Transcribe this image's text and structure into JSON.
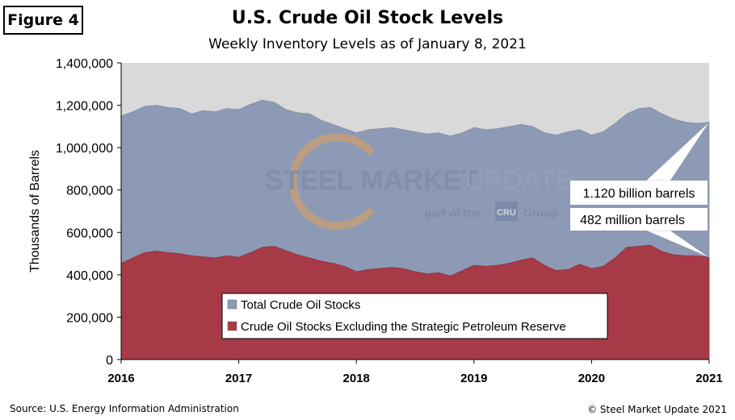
{
  "figure_label": "Figure 4",
  "source": "Source: U.S. Energy Information Administration",
  "copyright": "© Steel Market Update 2021",
  "watermark": {
    "brand_bold": "STEEL MARKET",
    "brand_light": "UPDATE",
    "tagline_prefix": "part of the",
    "tagline_logo": "CRU",
    "tagline_suffix": "Group"
  },
  "callouts": {
    "total": "1.120 billion barrels",
    "excl": "482 million barrels"
  },
  "colors": {
    "total": "#8c9ab5",
    "excl": "#a63a46",
    "plot_bg": "#d9d9d9"
  },
  "chart_data": {
    "type": "area",
    "title": "U.S. Crude Oil Stock Levels",
    "subtitle": "Weekly Inventory Levels as of January 8, 2021",
    "ylabel": "Thousands of Barrels",
    "xlabel": "",
    "xlim": [
      2016,
      2021
    ],
    "ylim": [
      0,
      1400000
    ],
    "yticks": [
      0,
      200000,
      400000,
      600000,
      800000,
      1000000,
      1200000,
      1400000
    ],
    "ytick_labels": [
      "0",
      "200,000",
      "400,000",
      "600,000",
      "800,000",
      "1,000,000",
      "1,200,000",
      "1,400,000"
    ],
    "xticks": [
      2016,
      2017,
      2018,
      2019,
      2020,
      2021
    ],
    "xtick_labels": [
      "2016",
      "2017",
      "2018",
      "2019",
      "2020",
      "2021"
    ],
    "legend_position": "bottom-center",
    "grid": false,
    "x": [
      2016.0,
      2016.1,
      2016.2,
      2016.3,
      2016.4,
      2016.5,
      2016.6,
      2016.7,
      2016.8,
      2016.9,
      2017.0,
      2017.1,
      2017.2,
      2017.3,
      2017.4,
      2017.5,
      2017.6,
      2017.7,
      2017.8,
      2017.9,
      2018.0,
      2018.1,
      2018.2,
      2018.3,
      2018.4,
      2018.5,
      2018.6,
      2018.7,
      2018.8,
      2018.9,
      2019.0,
      2019.1,
      2019.2,
      2019.3,
      2019.4,
      2019.5,
      2019.6,
      2019.7,
      2019.8,
      2019.9,
      2020.0,
      2020.1,
      2020.2,
      2020.3,
      2020.4,
      2020.5,
      2020.6,
      2020.7,
      2020.8,
      2020.9,
      2021.0
    ],
    "series": [
      {
        "name": "Total Crude Oil Stocks",
        "values": [
          1150000,
          1170000,
          1195000,
          1200000,
          1190000,
          1185000,
          1160000,
          1175000,
          1170000,
          1185000,
          1180000,
          1205000,
          1225000,
          1215000,
          1180000,
          1165000,
          1160000,
          1130000,
          1110000,
          1090000,
          1070000,
          1085000,
          1090000,
          1095000,
          1085000,
          1075000,
          1065000,
          1070000,
          1055000,
          1070000,
          1095000,
          1085000,
          1090000,
          1100000,
          1110000,
          1100000,
          1070000,
          1060000,
          1075000,
          1085000,
          1060000,
          1075000,
          1115000,
          1160000,
          1185000,
          1190000,
          1160000,
          1135000,
          1120000,
          1115000,
          1120000
        ]
      },
      {
        "name": "Crude Oil Stocks Excluding the Strategic Petroleum Reserve",
        "values": [
          455000,
          480000,
          505000,
          512000,
          505000,
          500000,
          490000,
          485000,
          480000,
          490000,
          483000,
          505000,
          530000,
          535000,
          515000,
          495000,
          480000,
          465000,
          455000,
          440000,
          415000,
          425000,
          430000,
          435000,
          430000,
          415000,
          405000,
          410000,
          395000,
          420000,
          445000,
          440000,
          445000,
          455000,
          470000,
          480000,
          445000,
          420000,
          425000,
          450000,
          430000,
          440000,
          480000,
          530000,
          535000,
          540000,
          510000,
          495000,
          490000,
          490000,
          482000
        ]
      }
    ]
  }
}
